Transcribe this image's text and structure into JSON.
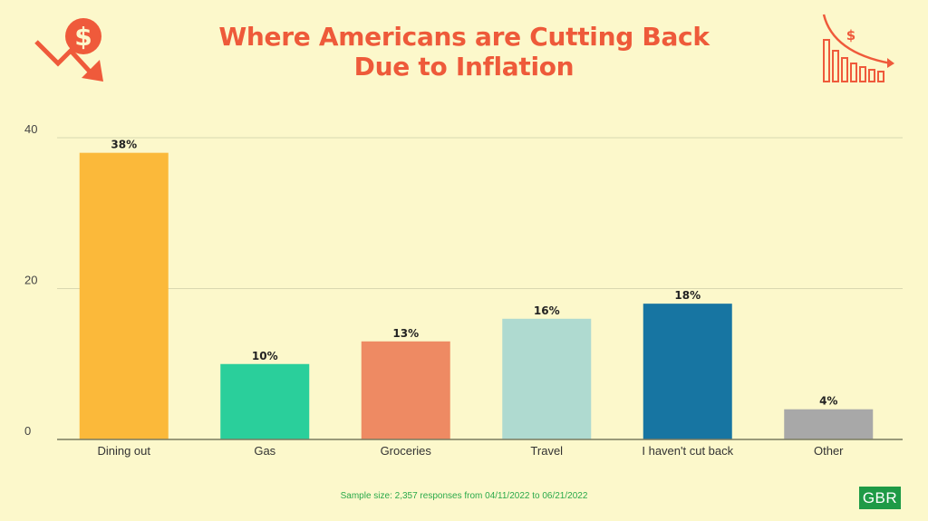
{
  "title_line1": "Where Americans are Cutting Back",
  "title_line2": "Due to Inflation",
  "footnote": "Sample size: 2,357 responses from 04/11/2022 to 06/21/2022",
  "badge": "GBR",
  "icons": {
    "left": "dollar-down-arrow-icon",
    "right": "dollar-declining-bars-icon"
  },
  "colors": {
    "background": "#fcf8cb",
    "title": "#ee5a3a",
    "footnote": "#2aa94a",
    "badge": "#1e9a46",
    "grid": "#d9d7b0",
    "axis": "#7a7a60"
  },
  "chart_data": {
    "type": "bar",
    "title": "Where Americans are Cutting Back Due to Inflation",
    "xlabel": "",
    "ylabel": "",
    "categories": [
      "Dining out",
      "Gas",
      "Groceries",
      "Travel",
      "I haven't cut back",
      "Other"
    ],
    "values": [
      38,
      10,
      13,
      16,
      18,
      4
    ],
    "data_labels": [
      "38%",
      "10%",
      "13%",
      "16%",
      "18%",
      "4%"
    ],
    "bar_colors": [
      "#fbb93a",
      "#2acf9b",
      "#ee8a63",
      "#afdad0",
      "#1775a2",
      "#a8a8a8"
    ],
    "ylim": [
      0,
      40
    ],
    "yticks": [
      0,
      20,
      40
    ],
    "grid": true,
    "legend": "none"
  }
}
